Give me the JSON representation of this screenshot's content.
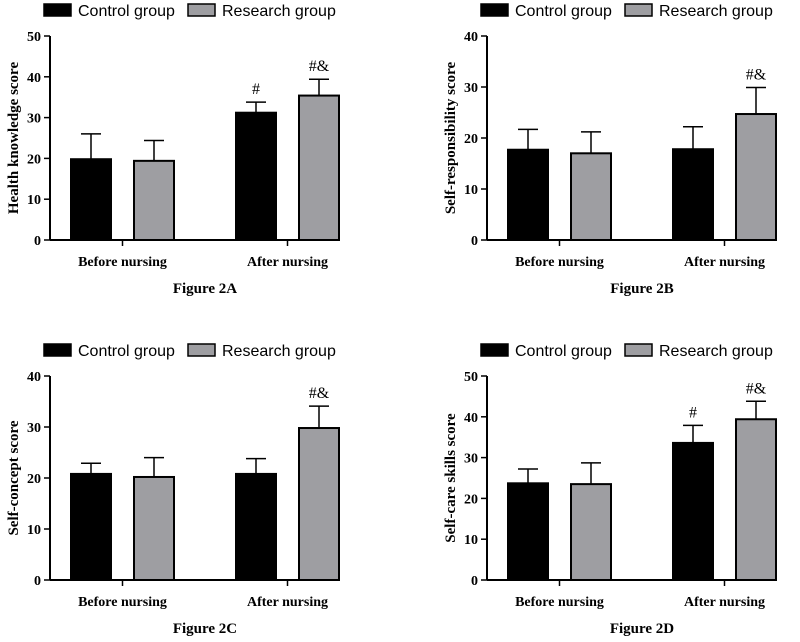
{
  "chart_data": [
    {
      "type": "bar",
      "title": "Figure 2A",
      "categories": [
        "Before nursing",
        "After nursing"
      ],
      "legend": [
        "Control group",
        "Research group"
      ],
      "ylabel": "Health knowledge score",
      "ylim": [
        0,
        50
      ],
      "yticks": [
        0,
        10,
        20,
        30,
        40,
        50
      ],
      "series": [
        {
          "name": "Control group",
          "color": "#000000",
          "values": [
            19.8,
            31.2
          ],
          "errors": [
            6.2,
            2.6
          ]
        },
        {
          "name": "Research group",
          "color": "#9e9ea2",
          "values": [
            19.4,
            35.4
          ],
          "errors": [
            5.0,
            4.0
          ]
        }
      ],
      "annotations": [
        {
          "category": 1,
          "series": 0,
          "text": "#"
        },
        {
          "category": 1,
          "series": 1,
          "text": "#&"
        }
      ]
    },
    {
      "type": "bar",
      "title": "Figure 2B",
      "categories": [
        "Before nursing",
        "After nursing"
      ],
      "legend": [
        "Control group",
        "Research group"
      ],
      "ylabel": "Self-responsibility score",
      "ylim": [
        0,
        40
      ],
      "yticks": [
        0,
        10,
        20,
        30,
        40
      ],
      "series": [
        {
          "name": "Control group",
          "color": "#000000",
          "values": [
            17.7,
            17.8
          ],
          "errors": [
            4.0,
            4.4
          ]
        },
        {
          "name": "Research group",
          "color": "#9e9ea2",
          "values": [
            17.0,
            24.7
          ],
          "errors": [
            4.2,
            5.2
          ]
        }
      ],
      "annotations": [
        {
          "category": 1,
          "series": 1,
          "text": "#&"
        }
      ]
    },
    {
      "type": "bar",
      "title": "Figure 2C",
      "categories": [
        "Before nursing",
        "After nursing"
      ],
      "legend": [
        "Control group",
        "Research group"
      ],
      "ylabel": "Self-concept score",
      "ylim": [
        0,
        40
      ],
      "yticks": [
        0,
        10,
        20,
        30,
        40
      ],
      "series": [
        {
          "name": "Control group",
          "color": "#000000",
          "values": [
            20.8,
            20.8
          ],
          "errors": [
            2.1,
            3.0
          ]
        },
        {
          "name": "Research group",
          "color": "#9e9ea2",
          "values": [
            20.2,
            29.8
          ],
          "errors": [
            3.8,
            4.3
          ]
        }
      ],
      "annotations": [
        {
          "category": 1,
          "series": 1,
          "text": "#&"
        }
      ]
    },
    {
      "type": "bar",
      "title": "Figure 2D",
      "categories": [
        "Before nursing",
        "After nursing"
      ],
      "legend": [
        "Control group",
        "Research group"
      ],
      "ylabel": "Self-care skills score",
      "ylim": [
        0,
        50
      ],
      "yticks": [
        0,
        10,
        20,
        30,
        40,
        50
      ],
      "series": [
        {
          "name": "Control group",
          "color": "#000000",
          "values": [
            23.7,
            33.6
          ],
          "errors": [
            3.5,
            4.3
          ]
        },
        {
          "name": "Research group",
          "color": "#9e9ea2",
          "values": [
            23.5,
            39.4
          ],
          "errors": [
            5.2,
            4.4
          ]
        }
      ],
      "annotations": [
        {
          "category": 1,
          "series": 0,
          "text": "#"
        },
        {
          "category": 1,
          "series": 1,
          "text": "#&"
        }
      ]
    }
  ]
}
